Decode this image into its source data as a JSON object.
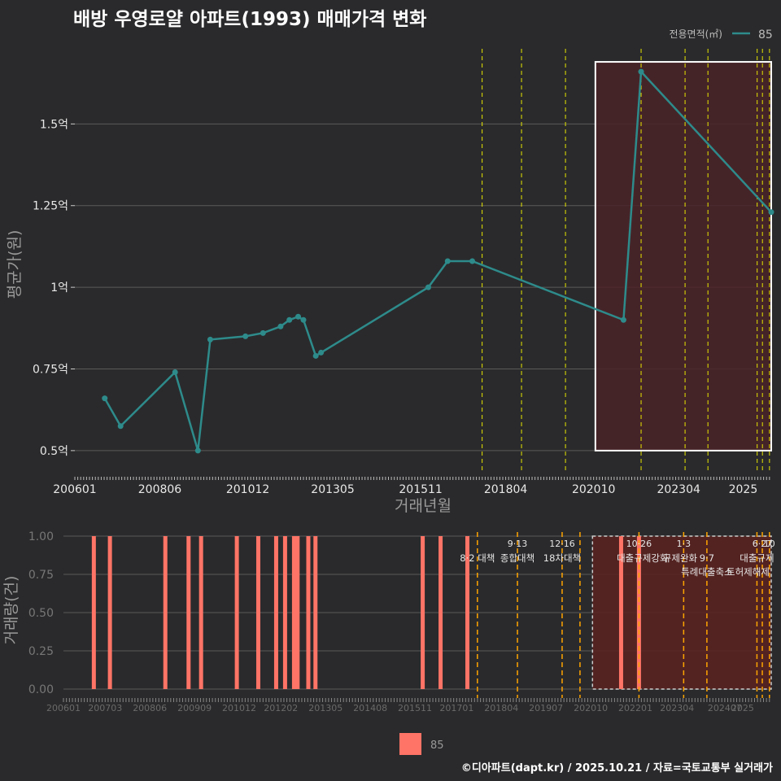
{
  "title": "배방 우영로얄 아파트(1993) 매매가격 변화",
  "caption": "©디아파트(dapt.kr) / 2025.10.21 / 자료=국토교통부 실거래가",
  "colors": {
    "background": "#2a2a2c",
    "line": "#2e8b8b",
    "bar": "#ff7466",
    "policy_top": "#e6e600",
    "policy_bottom": "#ffa500",
    "highlight_fill": "#4a2328",
    "grid": "#5a5a5a"
  },
  "chart_data": [
    {
      "type": "line",
      "title": "",
      "xlabel": "거래년월",
      "ylabel": "평균가(원)",
      "ylim": [
        0.43,
        1.73
      ],
      "xlim": [
        2006.0,
        2025.8
      ],
      "legend": {
        "title": "전용면적(㎡)",
        "entries": [
          "85"
        ],
        "position": "top-right"
      },
      "x_ticks": [
        {
          "v": 2006.0,
          "label": "200601"
        },
        {
          "v": 2008.417,
          "label": "200806"
        },
        {
          "v": 2010.917,
          "label": "201012"
        },
        {
          "v": 2013.333,
          "label": "201305"
        },
        {
          "v": 2015.833,
          "label": "201511"
        },
        {
          "v": 2018.25,
          "label": "201804"
        },
        {
          "v": 2020.75,
          "label": "202010"
        },
        {
          "v": 2023.167,
          "label": "202304"
        },
        {
          "v": 2025.0,
          "label": "2025"
        }
      ],
      "y_ticks": [
        {
          "v": 0.5,
          "label": "0.5억"
        },
        {
          "v": 0.75,
          "label": "0.75억"
        },
        {
          "v": 1.0,
          "label": "1억"
        },
        {
          "v": 1.25,
          "label": "1.25억"
        },
        {
          "v": 1.5,
          "label": "1.5억"
        }
      ],
      "series": [
        {
          "name": "85",
          "x": [
            2006.85,
            2007.3,
            2008.85,
            2009.5,
            2009.85,
            2010.85,
            2011.35,
            2011.85,
            2012.1,
            2012.35,
            2012.5,
            2012.85,
            2013.0,
            2016.05,
            2016.6,
            2017.3,
            2021.6,
            2022.1,
            2025.8
          ],
          "values": [
            0.66,
            0.575,
            0.74,
            0.5,
            0.84,
            0.85,
            0.86,
            0.88,
            0.9,
            0.91,
            0.9,
            0.79,
            0.8,
            1.0,
            1.08,
            1.08,
            0.9,
            1.66,
            1.23
          ]
        }
      ],
      "policy_lines": [
        2017.58,
        2018.7,
        2019.95,
        2022.1,
        2023.35,
        2024.0,
        2025.4,
        2025.55,
        2025.75
      ],
      "highlight": {
        "x_start": 2020.8,
        "x_end": 2025.8,
        "y_start": 0.5,
        "y_end": 1.69
      }
    },
    {
      "type": "bar",
      "title": "",
      "xlabel": "",
      "ylabel": "거래량(건)",
      "ylim": [
        0,
        1.0
      ],
      "xlim": [
        2006.0,
        2025.8
      ],
      "y_ticks": [
        {
          "v": 0.0,
          "label": "0.00"
        },
        {
          "v": 0.25,
          "label": "0.25"
        },
        {
          "v": 0.5,
          "label": "0.50"
        },
        {
          "v": 0.75,
          "label": "0.75"
        },
        {
          "v": 1.0,
          "label": "1.00"
        }
      ],
      "x_ticks": [
        {
          "v": 2006.0,
          "label": "200601"
        },
        {
          "v": 2007.167,
          "label": "200703"
        },
        {
          "v": 2008.417,
          "label": "200806"
        },
        {
          "v": 2009.667,
          "label": "200909"
        },
        {
          "v": 2010.917,
          "label": "201012"
        },
        {
          "v": 2012.083,
          "label": "201202"
        },
        {
          "v": 2013.333,
          "label": "201305"
        },
        {
          "v": 2014.583,
          "label": "201408"
        },
        {
          "v": 2015.833,
          "label": "201511"
        },
        {
          "v": 2017.0,
          "label": "201701"
        },
        {
          "v": 2018.25,
          "label": "201804"
        },
        {
          "v": 2019.5,
          "label": "201907"
        },
        {
          "v": 2020.75,
          "label": "202010"
        },
        {
          "v": 2022.0,
          "label": "202201"
        },
        {
          "v": 2023.167,
          "label": "202304"
        },
        {
          "v": 2024.5,
          "label": "202407"
        },
        {
          "v": 2025.0,
          "label": "2025"
        }
      ],
      "legend": {
        "entries": [
          "85"
        ],
        "position": "bottom-center"
      },
      "series": [
        {
          "name": "85",
          "x": [
            2006.85,
            2007.3,
            2008.85,
            2009.5,
            2009.85,
            2010.85,
            2011.45,
            2011.95,
            2012.2,
            2012.45,
            2012.55,
            2012.85,
            2013.05,
            2016.05,
            2016.55,
            2017.3,
            2021.6,
            2022.1
          ],
          "values": [
            1,
            1,
            1,
            1,
            1,
            1,
            1,
            1,
            1,
            1,
            1,
            1,
            1,
            1,
            1,
            1,
            1,
            1
          ]
        }
      ],
      "policy_lines": [
        2017.58,
        2018.7,
        2019.95,
        2020.45,
        2022.1,
        2023.35,
        2024.0,
        2025.4,
        2025.55,
        2025.75
      ],
      "highlight": {
        "x_start": 2020.8,
        "x_end": 2025.8,
        "y_start": 0.0,
        "y_end": 1.0
      },
      "annotations": [
        {
          "x": 2017.58,
          "text": "8·2 대책",
          "row": 1
        },
        {
          "x": 2018.7,
          "text": "9·13",
          "row": 0
        },
        {
          "x": 2018.7,
          "text": "종합대책",
          "row": 1
        },
        {
          "x": 2019.95,
          "text": "12·16",
          "row": 0
        },
        {
          "x": 2019.95,
          "text": "18차대책",
          "row": 1
        },
        {
          "x": 2022.1,
          "text": "10·26",
          "row": 0
        },
        {
          "x": 2022.2,
          "text": "대출규제강화",
          "row": 1
        },
        {
          "x": 2023.35,
          "text": "1·3",
          "row": 0
        },
        {
          "x": 2023.25,
          "text": "규제완화",
          "row": 1
        },
        {
          "x": 2024.0,
          "text": "9·7",
          "row": 1
        },
        {
          "x": 2024.0,
          "text": "특례대출축소",
          "row": 2
        },
        {
          "x": 2025.15,
          "text": "토허제해제",
          "row": 2
        },
        {
          "x": 2025.55,
          "text": "6·27",
          "row": 0
        },
        {
          "x": 2025.4,
          "text": "대출규제",
          "row": 1
        },
        {
          "x": 2025.75,
          "text": "10",
          "row": 0
        }
      ]
    }
  ]
}
